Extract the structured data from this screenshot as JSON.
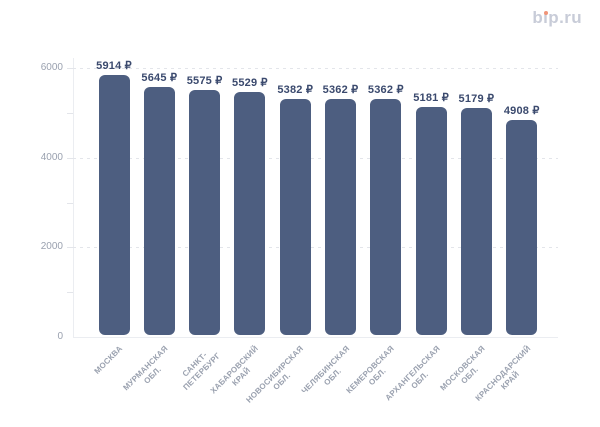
{
  "logo": {
    "text": "bip.ru",
    "parts": {
      "pre": "b",
      "i": "ı",
      "post": "p.ru"
    },
    "text_color": "#c8ccd8",
    "dot_color": "#f09478"
  },
  "chart_data": {
    "type": "bar",
    "title": "",
    "xlabel": "",
    "ylabel": "",
    "categories": [
      "МОСКВА",
      "МУРМАНСКАЯ ОБЛ.",
      "САНКТ-ПЕТЕРБУРГ",
      "ХАБАРОВСКИЙ КРАЙ",
      "НОВОСИБИРСКАЯ ОБЛ.",
      "ЧЕЛЯБИНСКАЯ ОБЛ.",
      "КЕМЕРОВСКАЯ ОБЛ.",
      "АРХАНГЕЛЬСКАЯ ОБЛ.",
      "МОСКОВСКАЯ ОБЛ.",
      "КРАСНОДАРСКИЙ КРАЙ"
    ],
    "category_lines": [
      [
        "МОСКВА"
      ],
      [
        "МУРМАНСКАЯ",
        "ОБЛ."
      ],
      [
        "САНКТ-",
        "ПЕТЕРБУРГ"
      ],
      [
        "ХАБАРОВСКИЙ",
        "КРАЙ"
      ],
      [
        "НОВОСИБИРСКАЯ",
        "ОБЛ."
      ],
      [
        "ЧЕЛЯБИНСКАЯ",
        "ОБЛ."
      ],
      [
        "КЕМЕРОВСКАЯ",
        "ОБЛ."
      ],
      [
        "АРХАНГЕЛЬСКАЯ",
        "ОБЛ."
      ],
      [
        "МОСКОВСКАЯ",
        "ОБЛ."
      ],
      [
        "КРАСНОДАРСКИЙ",
        "КРАЙ"
      ]
    ],
    "values": [
      5914,
      5645,
      5575,
      5529,
      5382,
      5362,
      5362,
      5181,
      5179,
      4908
    ],
    "value_labels": [
      "5914 ₽",
      "5645 ₽",
      "5575 ₽",
      "5529 ₽",
      "5382 ₽",
      "5362 ₽",
      "5362 ₽",
      "5181 ₽",
      "5179 ₽",
      "4908 ₽"
    ],
    "currency": "₽",
    "ylim": [
      0,
      6000
    ],
    "yticks": [
      0,
      2000,
      4000,
      6000
    ],
    "ytick_labels": [
      "0",
      "2000",
      "4000",
      "6000"
    ],
    "minor_yticks": [
      1000,
      3000,
      5000
    ],
    "grid": "horizontal dotted lines at major y ticks",
    "legend": "none",
    "bar_color": "#4d5e80",
    "value_label_color": "#3b4a6e",
    "axis_text_color": "#9aa1af",
    "gridline_color": "#e3e5ea",
    "axis_line_color": "#ebedf1"
  }
}
